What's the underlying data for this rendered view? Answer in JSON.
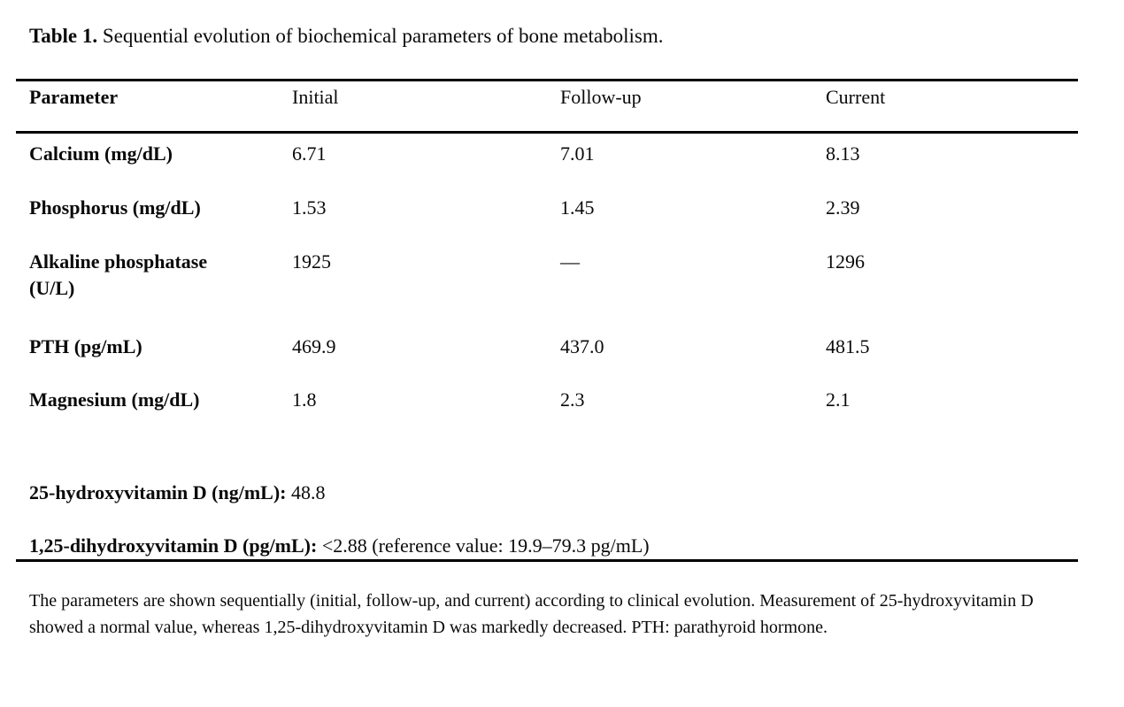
{
  "caption": {
    "label": "Table 1.",
    "text": " Sequential evolution of biochemical parameters of bone metabolism."
  },
  "table": {
    "headers": [
      "Parameter",
      "Initial",
      "Follow-up",
      "Current"
    ],
    "rows": [
      {
        "parameter": "Calcium (mg/dL)",
        "initial": "6.71",
        "followup": "7.01",
        "current": "8.13"
      },
      {
        "parameter": "Phosphorus (mg/dL)",
        "initial": "1.53",
        "followup": "1.45",
        "current": "2.39"
      },
      {
        "parameter": "Alkaline phosphatase (U/L)",
        "initial": "1925",
        "followup": "—",
        "current": "1296"
      },
      {
        "parameter": "PTH (pg/mL)",
        "initial": "469.9",
        "followup": "437.0",
        "current": "481.5"
      },
      {
        "parameter": "Magnesium (mg/dL)",
        "initial": "1.8",
        "followup": "2.3",
        "current": "2.1"
      }
    ],
    "extra_rows": [
      {
        "label": "25-hydroxyvitamin D (ng/mL):",
        "value": " 48.8"
      },
      {
        "label": "1,25-dihydroxyvitamin D (pg/mL):",
        "value": " <2.88 (reference value: 19.9–79.3 pg/mL)"
      }
    ]
  },
  "footnote": "The parameters are shown sequentially (initial, follow-up, and current) according to clinical evolution. Measurement of 25-hydroxyvitamin D showed a normal value, whereas 1,25-dihydroxyvitamin D was markedly decreased. PTH: parathyroid hormone.",
  "colors": {
    "text": "#0a0a0a",
    "background": "#ffffff",
    "rule": "#000000"
  }
}
